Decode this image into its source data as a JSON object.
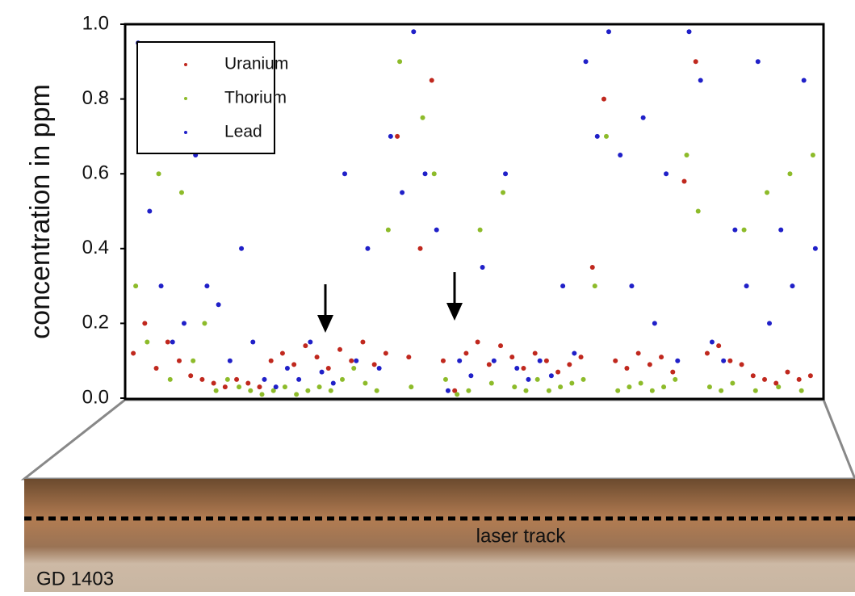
{
  "chart_data": {
    "type": "scatter",
    "y_label": "concentration in ppm",
    "ylim": [
      0,
      1
    ],
    "yticks": [
      {
        "value": 0,
        "label": "0.0"
      },
      0.2,
      0.4,
      0.6,
      0.8,
      {
        "value": 1,
        "label": "1.0"
      }
    ],
    "legend": "top-left",
    "series": [
      {
        "name": "Uranium",
        "color": "#c0281e",
        "values": [
          0.12,
          0.2,
          0.08,
          0.15,
          0.1,
          0.06,
          0.05,
          0.04,
          0.03,
          0.05,
          0.04,
          0.03,
          0.1,
          0.12,
          0.09,
          0.14,
          0.11,
          0.08,
          0.13,
          0.1,
          0.15,
          0.09,
          0.12,
          0.7,
          0.11,
          0.4,
          0.85,
          0.1,
          0.02,
          0.12,
          0.15,
          0.09,
          0.14,
          0.11,
          0.08,
          0.12,
          0.1,
          0.07,
          0.09,
          0.11,
          0.35,
          0.8,
          0.1,
          0.08,
          0.12,
          0.09,
          0.11,
          0.07,
          0.58,
          0.9,
          0.12,
          0.14,
          0.1,
          0.09,
          0.06,
          0.05,
          0.04,
          0.07,
          0.05,
          0.06
        ]
      },
      {
        "name": "Thorium",
        "color": "#8dbb2a",
        "values": [
          0.3,
          0.15,
          0.6,
          0.05,
          0.55,
          0.1,
          0.2,
          0.02,
          0.05,
          0.03,
          0.02,
          0.01,
          0.02,
          0.03,
          0.01,
          0.02,
          0.03,
          0.02,
          0.05,
          0.08,
          0.04,
          0.02,
          0.45,
          0.9,
          0.03,
          0.75,
          0.6,
          0.05,
          0.01,
          0.02,
          0.45,
          0.04,
          0.55,
          0.03,
          0.02,
          0.05,
          0.02,
          0.03,
          0.04,
          0.05,
          0.3,
          0.7,
          0.02,
          0.03,
          0.04,
          0.02,
          0.03,
          0.05,
          0.65,
          0.5,
          0.03,
          0.02,
          0.04,
          0.45,
          0.02,
          0.55,
          0.03,
          0.6,
          0.02,
          0.65
        ]
      },
      {
        "name": "Lead",
        "color": "#2020c8",
        "values": [
          0.95,
          0.5,
          0.3,
          0.15,
          0.2,
          0.65,
          0.3,
          0.25,
          0.1,
          0.4,
          0.15,
          0.05,
          0.03,
          0.08,
          0.05,
          0.15,
          0.07,
          0.04,
          0.6,
          0.1,
          0.4,
          0.08,
          0.7,
          0.55,
          0.98,
          0.6,
          0.45,
          0.02,
          0.1,
          0.06,
          0.35,
          0.1,
          0.6,
          0.08,
          0.05,
          0.1,
          0.06,
          0.3,
          0.12,
          0.9,
          0.7,
          0.98,
          0.65,
          0.3,
          0.75,
          0.2,
          0.6,
          0.1,
          0.98,
          0.85,
          0.15,
          0.1,
          0.45,
          0.3,
          0.9,
          0.2,
          0.45,
          0.3,
          0.85,
          0.4
        ]
      }
    ],
    "annotations": [
      "laser track",
      "GD 1403"
    ]
  }
}
